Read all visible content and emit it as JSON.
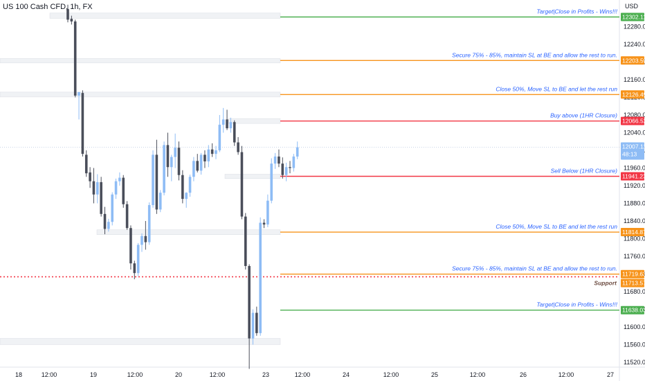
{
  "header": {
    "symbol": "US 100 Cash CFD, 1h, FX"
  },
  "chart_data": {
    "type": "candlestick",
    "currency": "USD",
    "y_ticks": [
      12280,
      12240,
      12200,
      12160,
      12120,
      12080,
      12040,
      12000,
      11960,
      11920,
      11880,
      11840,
      11800,
      11760,
      11720,
      11680,
      11640,
      11600,
      11560,
      11520
    ],
    "y_tick_labels": [
      "12280.00",
      "12240.00",
      "12200.00",
      "12160.00",
      "12120.00",
      "12080.00",
      "12040.00",
      "12000.00",
      "11960.00",
      "11920.00",
      "11880.00",
      "11840.00",
      "11800.00",
      "11760.00",
      "11720.00",
      "11680.00",
      "11640.00",
      "11600.00",
      "11560.00",
      "11520.00"
    ],
    "ylim": [
      11500,
      12320
    ],
    "x_labels": [
      "18",
      "12:00",
      "19",
      "12:00",
      "20",
      "12:00",
      "23",
      "12:00",
      "24",
      "12:00",
      "25",
      "12:00",
      "26",
      "12:00",
      "27"
    ],
    "current_price": {
      "value": "12007.12",
      "countdown": "48:13",
      "color": "#8ebcf5"
    },
    "levels": [
      {
        "price": 12302.11,
        "label": "12302.11",
        "text": "Target|Close in Profits - Wins!!!",
        "color": "#4caf50"
      },
      {
        "price": 12203.59,
        "label": "12203.59",
        "text": "Secure 75% - 85%, maintain SL at BE and allow the rest to run.",
        "color": "#f7931a"
      },
      {
        "price": 12126.49,
        "label": "12126.49",
        "text": "Close 50%, Move SL to BE and let the rest run",
        "color": "#f7931a"
      },
      {
        "price": 12066.52,
        "label": "12066.52",
        "text": "Buy above (1HR Closure)",
        "color": "#f23645"
      },
      {
        "price": 11941.23,
        "label": "11941.23",
        "text": "Sell Below (1HR Closure)",
        "color": "#f23645"
      },
      {
        "price": 11814.87,
        "label": "11814.87",
        "text": "Close 50%, Move SL to BE and let the rest run",
        "color": "#f7931a"
      },
      {
        "price": 11719.63,
        "label": "11719.63",
        "text": "Secure 75% - 85%, maintain SL at BE and allow the rest to run.",
        "color": "#f7931a"
      },
      {
        "price": 11638.03,
        "label": "11638.03",
        "text": "Target|Close in Profits - Wins!!!",
        "color": "#4caf50"
      }
    ],
    "support": {
      "price": 11713.57,
      "label": "11713.57",
      "text": "Support",
      "color": "#f23645"
    },
    "annotation_color": "#2962ff",
    "up_color": "#8ebcf5",
    "down_color": "#4a4e5a",
    "candles": [
      {
        "o": 12320,
        "h": 12330,
        "l": 12290,
        "c": 12296
      },
      {
        "o": 12298,
        "h": 12305,
        "l": 12285,
        "c": 12292
      },
      {
        "o": 12292,
        "h": 12296,
        "l": 12120,
        "c": 12124
      },
      {
        "o": 12124,
        "h": 12132,
        "l": 12070,
        "c": 12132
      },
      {
        "o": 12130,
        "h": 12136,
        "l": 11986,
        "c": 11992
      },
      {
        "o": 11990,
        "h": 12000,
        "l": 11940,
        "c": 11948
      },
      {
        "o": 11950,
        "h": 11962,
        "l": 11915,
        "c": 11930
      },
      {
        "o": 11930,
        "h": 11960,
        "l": 11880,
        "c": 11900
      },
      {
        "o": 11900,
        "h": 11946,
        "l": 11880,
        "c": 11928
      },
      {
        "o": 11928,
        "h": 11940,
        "l": 11850,
        "c": 11856
      },
      {
        "o": 11856,
        "h": 11872,
        "l": 11810,
        "c": 11822
      },
      {
        "o": 11822,
        "h": 11845,
        "l": 11816,
        "c": 11838
      },
      {
        "o": 11838,
        "h": 11905,
        "l": 11830,
        "c": 11900
      },
      {
        "o": 11900,
        "h": 11936,
        "l": 11890,
        "c": 11930
      },
      {
        "o": 11930,
        "h": 11950,
        "l": 11920,
        "c": 11938
      },
      {
        "o": 11938,
        "h": 11944,
        "l": 11870,
        "c": 11878
      },
      {
        "o": 11878,
        "h": 11885,
        "l": 11820,
        "c": 11824
      },
      {
        "o": 11824,
        "h": 11830,
        "l": 11730,
        "c": 11744
      },
      {
        "o": 11744,
        "h": 11750,
        "l": 11708,
        "c": 11722
      },
      {
        "o": 11722,
        "h": 11790,
        "l": 11715,
        "c": 11786
      },
      {
        "o": 11786,
        "h": 11812,
        "l": 11770,
        "c": 11806
      },
      {
        "o": 11806,
        "h": 11840,
        "l": 11775,
        "c": 11792
      },
      {
        "o": 11792,
        "h": 11882,
        "l": 11786,
        "c": 11876
      },
      {
        "o": 11876,
        "h": 12000,
        "l": 11870,
        "c": 11990
      },
      {
        "o": 11990,
        "h": 12024,
        "l": 11856,
        "c": 11866
      },
      {
        "o": 11866,
        "h": 11910,
        "l": 11860,
        "c": 11904
      },
      {
        "o": 11904,
        "h": 12020,
        "l": 11898,
        "c": 12012
      },
      {
        "o": 12012,
        "h": 12040,
        "l": 11940,
        "c": 11962
      },
      {
        "o": 11962,
        "h": 11990,
        "l": 11930,
        "c": 11985
      },
      {
        "o": 11985,
        "h": 12038,
        "l": 11960,
        "c": 12006
      },
      {
        "o": 12006,
        "h": 12020,
        "l": 11932,
        "c": 11944
      },
      {
        "o": 11944,
        "h": 11955,
        "l": 11880,
        "c": 11890
      },
      {
        "o": 11890,
        "h": 11905,
        "l": 11870,
        "c": 11904
      },
      {
        "o": 11904,
        "h": 11945,
        "l": 11895,
        "c": 11940
      },
      {
        "o": 11940,
        "h": 11985,
        "l": 11930,
        "c": 11976
      },
      {
        "o": 11976,
        "h": 11992,
        "l": 11950,
        "c": 11954
      },
      {
        "o": 11954,
        "h": 11994,
        "l": 11945,
        "c": 11990
      },
      {
        "o": 11990,
        "h": 12000,
        "l": 11960,
        "c": 11975
      },
      {
        "o": 11975,
        "h": 12012,
        "l": 11962,
        "c": 12002
      },
      {
        "o": 12002,
        "h": 12016,
        "l": 11985,
        "c": 11992
      },
      {
        "o": 11992,
        "h": 12010,
        "l": 11980,
        "c": 12000
      },
      {
        "o": 12000,
        "h": 12080,
        "l": 11996,
        "c": 12058
      },
      {
        "o": 12058,
        "h": 12096,
        "l": 12040,
        "c": 12070
      },
      {
        "o": 12070,
        "h": 12092,
        "l": 12046,
        "c": 12050
      },
      {
        "o": 12050,
        "h": 12074,
        "l": 12040,
        "c": 12064
      },
      {
        "o": 12064,
        "h": 12068,
        "l": 12010,
        "c": 12018
      },
      {
        "o": 12018,
        "h": 12030,
        "l": 11990,
        "c": 11996
      },
      {
        "o": 11996,
        "h": 12010,
        "l": 11844,
        "c": 11850
      },
      {
        "o": 11850,
        "h": 11858,
        "l": 11730,
        "c": 11738
      },
      {
        "o": 11738,
        "h": 11742,
        "l": 11505,
        "c": 11574
      },
      {
        "o": 11574,
        "h": 11640,
        "l": 11560,
        "c": 11632
      },
      {
        "o": 11632,
        "h": 11646,
        "l": 11580,
        "c": 11586
      },
      {
        "o": 11586,
        "h": 11848,
        "l": 11580,
        "c": 11836
      },
      {
        "o": 11836,
        "h": 11844,
        "l": 11824,
        "c": 11832
      },
      {
        "o": 11832,
        "h": 11900,
        "l": 11826,
        "c": 11886
      },
      {
        "o": 11886,
        "h": 11982,
        "l": 11880,
        "c": 11970
      },
      {
        "o": 11970,
        "h": 11994,
        "l": 11958,
        "c": 11986
      },
      {
        "o": 11986,
        "h": 12002,
        "l": 11962,
        "c": 11970
      },
      {
        "o": 11970,
        "h": 11984,
        "l": 11936,
        "c": 11944
      },
      {
        "o": 11944,
        "h": 11972,
        "l": 11930,
        "c": 11962
      },
      {
        "o": 11962,
        "h": 11976,
        "l": 11948,
        "c": 11960
      },
      {
        "o": 11960,
        "h": 11992,
        "l": 11952,
        "c": 11986
      },
      {
        "o": 11986,
        "h": 12020,
        "l": 11980,
        "c": 12007
      }
    ]
  }
}
